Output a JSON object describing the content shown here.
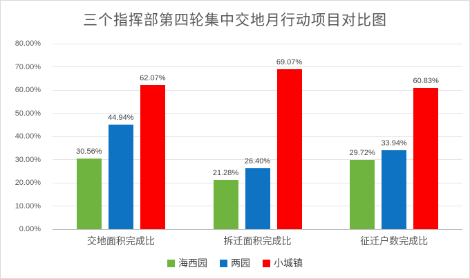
{
  "title": "三个指挥部第四轮集中交地月行动项目对比图",
  "colors": {
    "series_green": "#6FB43F",
    "series_blue": "#0D73C2",
    "series_red": "#FC0000",
    "title_text": "#595959",
    "axis_text": "#595959",
    "gridline": "#e3e3e3"
  },
  "chart_data": {
    "type": "bar",
    "title": "三个指挥部第四轮集中交地月行动项目对比图",
    "categories": [
      "交地面积完成比",
      "拆迁面积完成比",
      "征迁户数完成比"
    ],
    "series": [
      {
        "name": "海西园",
        "color": "#6FB43F",
        "values": [
          30.56,
          21.28,
          29.72
        ]
      },
      {
        "name": "两园",
        "color": "#0D73C2",
        "values": [
          44.94,
          26.4,
          33.94
        ]
      },
      {
        "name": "小城镇",
        "color": "#FC0000",
        "values": [
          62.07,
          69.07,
          60.83
        ]
      }
    ],
    "data_labels": [
      [
        "30.56%",
        "21.28%",
        "29.72%"
      ],
      [
        "44.94%",
        "26.40%",
        "33.94%"
      ],
      [
        "62.07%",
        "69.07%",
        "60.83%"
      ]
    ],
    "xlabel": "",
    "ylabel": "",
    "ylim": [
      0,
      80
    ],
    "yticks": [
      "80.00%",
      "70.00%",
      "60.00%",
      "50.00%",
      "40.00%",
      "30.00%",
      "20.00%",
      "10.00%",
      "0.00%"
    ],
    "grid": true,
    "legend_position": "bottom"
  }
}
